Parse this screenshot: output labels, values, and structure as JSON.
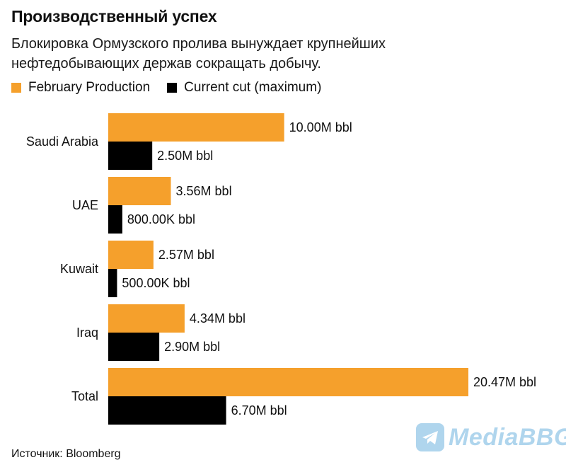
{
  "title": "Производственный успех",
  "subtitle": "Блокировка Ормузского пролива вынуждает крупнейших нефтедобывающих держав сокращать добычу.",
  "source": "Источник: Bloomberg",
  "watermark": "MediaBBG",
  "colors": {
    "february": "#F5A02C",
    "current": "#000000"
  },
  "chart_data": {
    "type": "bar",
    "orientation": "horizontal",
    "categories": [
      "Saudi Arabia",
      "UAE",
      "Kuwait",
      "Iraq",
      "Total"
    ],
    "series": [
      {
        "name": "February Production",
        "values": [
          10000000,
          3560000,
          2570000,
          4340000,
          20470000
        ],
        "labels": [
          "10.00M bbl",
          "3.56M bbl",
          "2.57M bbl",
          "4.34M bbl",
          "20.47M bbl"
        ]
      },
      {
        "name": "Current cut (maximum)",
        "values": [
          2500000,
          800000,
          500000,
          2900000,
          6700000
        ],
        "labels": [
          "2.50M bbl",
          "800.00K bbl",
          "500.00K bbl",
          "2.90M bbl",
          "6.70M bbl"
        ]
      }
    ],
    "xlim": [
      0,
      20470000
    ],
    "grid": false,
    "legend": "top-left"
  }
}
